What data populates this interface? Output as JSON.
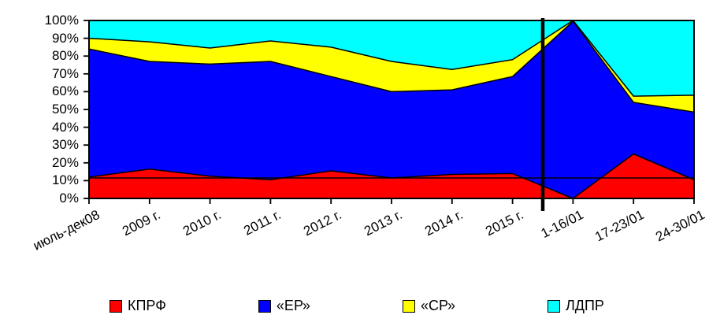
{
  "chart_data": {
    "type": "area",
    "variant": "stacked-percent",
    "title": "",
    "categories": [
      "июль-дек08",
      "2009 г.",
      "2010 г.",
      "2011 г.",
      "2012 г.",
      "2013 г.",
      "2014 г.",
      "2015 г.",
      "1-16/01",
      "17-23/01",
      "24-30/01"
    ],
    "series": [
      {
        "name": "КПРФ",
        "color": "#ff0000",
        "values": [
          12,
          16.5,
          12.5,
          10.5,
          15.5,
          11.5,
          13.5,
          14,
          0,
          25,
          10.5
        ]
      },
      {
        "name": "«ЕР»",
        "color": "#0000ff",
        "values": [
          72,
          60.5,
          63,
          66.5,
          53,
          48.5,
          47.5,
          54.5,
          99.5,
          29,
          38
        ]
      },
      {
        "name": "«СР»",
        "color": "#ffff00",
        "values": [
          6,
          11,
          9,
          11.5,
          16.5,
          17,
          11.5,
          9.5,
          0.5,
          3.5,
          9.5
        ]
      },
      {
        "name": "ЛДПР",
        "color": "#00ffff",
        "values": [
          10,
          12,
          15.5,
          11.5,
          15,
          23,
          27.5,
          22,
          0,
          42.5,
          42
        ]
      }
    ],
    "y_axis": {
      "min": 0,
      "max": 100,
      "step": 10,
      "tick_labels": [
        "100%",
        "90%",
        "80%",
        "70%",
        "60%",
        "50%",
        "40%",
        "30%",
        "20%",
        "10%",
        "0%"
      ]
    },
    "reference_line": {
      "value": 11.5,
      "color": "#000000"
    },
    "divider_line": {
      "between": [
        "2015 г.",
        "1-16/01"
      ],
      "color": "#000000"
    },
    "legend": {
      "position": "bottom",
      "entries": [
        "КПРФ",
        "«ЕР»",
        "«СР»",
        "ЛДПР"
      ]
    },
    "grid": "off",
    "axis_color": "#000000",
    "background_color": "#ffffff"
  }
}
